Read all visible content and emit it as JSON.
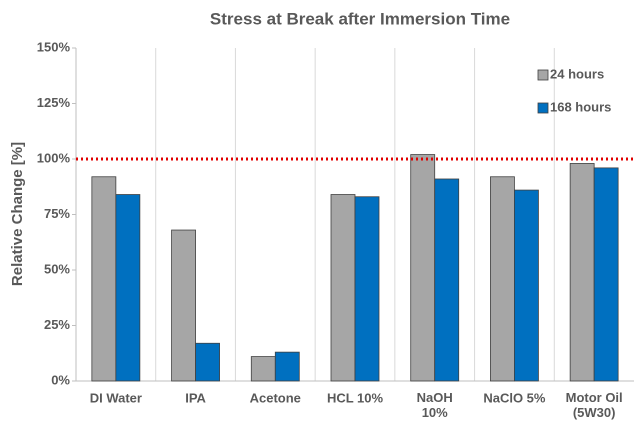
{
  "chart_data": {
    "type": "bar",
    "title": "Stress at Break after Immersion Time",
    "ylabel": "Relative Change [%]",
    "categories": [
      "DI Water",
      "IPA",
      "Acetone",
      "HCL 10%",
      "NaOH\n10%",
      "NaClO 5%",
      "Motor Oil\n(5W30)"
    ],
    "series": [
      {
        "name": "24 hours",
        "color": "#a6a6a6",
        "values": [
          92,
          68,
          11,
          84,
          102,
          92,
          98
        ]
      },
      {
        "name": "168 hours",
        "color": "#0070c0",
        "values": [
          84,
          17,
          13,
          83,
          91,
          86,
          96
        ]
      }
    ],
    "ylim": [
      0,
      150
    ],
    "yticks": [
      {
        "value": 0,
        "label": "0%"
      },
      {
        "value": 25,
        "label": "25%"
      },
      {
        "value": 50,
        "label": "50%"
      },
      {
        "value": 75,
        "label": "75%"
      },
      {
        "value": 100,
        "label": "100%"
      },
      {
        "value": 125,
        "label": "125%"
      },
      {
        "value": 150,
        "label": "150%"
      }
    ],
    "reference_line": {
      "value": 100,
      "color": "#e00000"
    },
    "legend": "upper right"
  }
}
